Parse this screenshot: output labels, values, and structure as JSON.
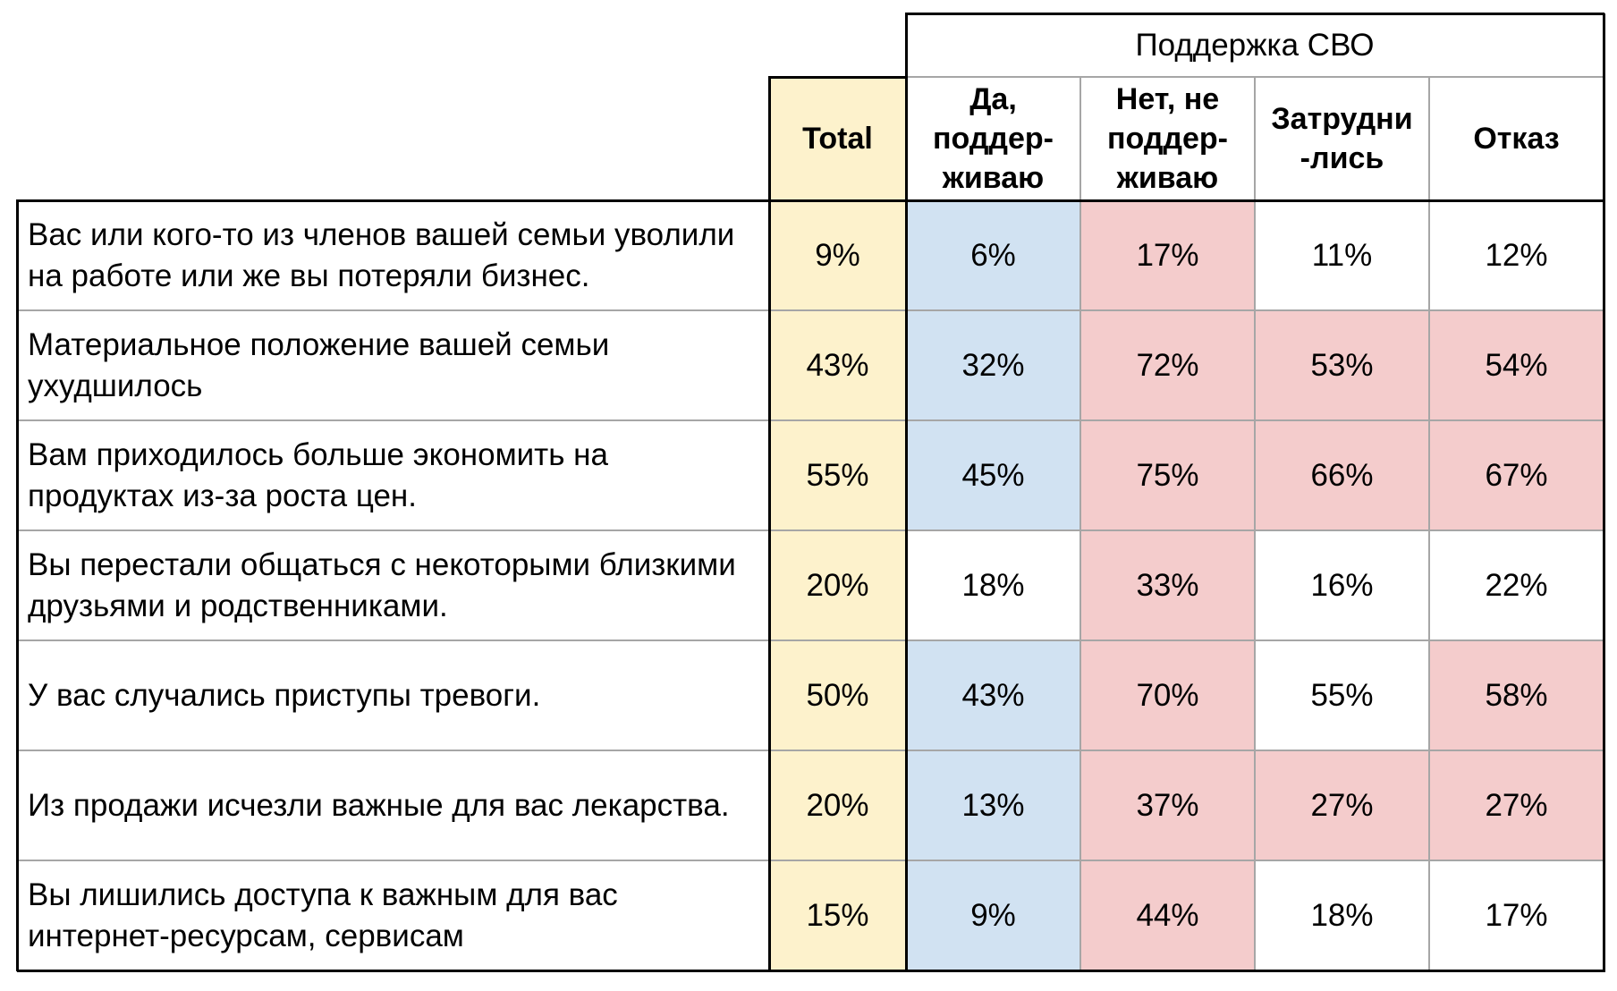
{
  "colors": {
    "total_fill": "#fdf2cc",
    "blue_fill": "#d1e2f2",
    "red_fill": "#f4cccc",
    "white_fill": "#ffffff",
    "border_dark": "#000000",
    "border_light": "#a6a6a6"
  },
  "chart_data": {
    "type": "table",
    "group_header": "Поддержка СВО",
    "columns": [
      {
        "label": "Total",
        "fill": "total"
      },
      {
        "label": "Да,\nподдер-\nживаю",
        "fill": "blue"
      },
      {
        "label": "Нет, не\nподдер-\nживаю",
        "fill": "red"
      },
      {
        "label": "Затрудни\n-лись",
        "fill": "white"
      },
      {
        "label": "Отказ",
        "fill": "white"
      }
    ],
    "rows": [
      {
        "label": "Вас или кого-то из членов вашей семьи уволили на работе или же вы потеряли бизнес.",
        "values": [
          "9%",
          "6%",
          "17%",
          "11%",
          "12%"
        ],
        "fills": [
          "total",
          "blue",
          "red",
          "white",
          "white"
        ]
      },
      {
        "label": "Материальное положение вашей семьи ухудшилось",
        "values": [
          "43%",
          "32%",
          "72%",
          "53%",
          "54%"
        ],
        "fills": [
          "total",
          "blue",
          "red",
          "red",
          "red"
        ]
      },
      {
        "label": "Вам приходилось больше экономить на продуктах из-за роста цен.",
        "values": [
          "55%",
          "45%",
          "75%",
          "66%",
          "67%"
        ],
        "fills": [
          "total",
          "blue",
          "red",
          "red",
          "red"
        ]
      },
      {
        "label": "Вы перестали общаться с некоторыми близкими друзьями и родственниками.",
        "values": [
          "20%",
          "18%",
          "33%",
          "16%",
          "22%"
        ],
        "fills": [
          "total",
          "white",
          "red",
          "white",
          "white"
        ]
      },
      {
        "label": "У вас случались приступы тревоги.",
        "values": [
          "50%",
          "43%",
          "70%",
          "55%",
          "58%"
        ],
        "fills": [
          "total",
          "blue",
          "red",
          "white",
          "red"
        ]
      },
      {
        "label": "Из продажи исчезли важные для вас лекарства.",
        "values": [
          "20%",
          "13%",
          "37%",
          "27%",
          "27%"
        ],
        "fills": [
          "total",
          "blue",
          "red",
          "red",
          "red"
        ]
      },
      {
        "label": "Вы лишились доступа к важным для вас интернет-ресурсам, сервисам",
        "values": [
          "15%",
          "9%",
          "44%",
          "18%",
          "17%"
        ],
        "fills": [
          "total",
          "blue",
          "red",
          "white",
          "white"
        ]
      }
    ]
  }
}
